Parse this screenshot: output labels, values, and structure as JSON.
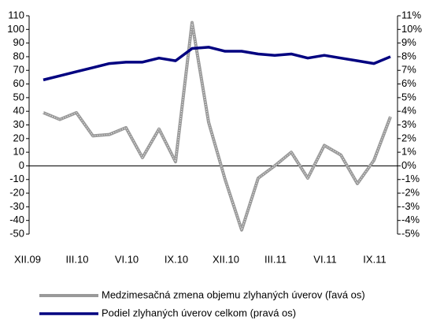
{
  "chart_data": {
    "type": "line",
    "categories": [
      "XII.09",
      null,
      null,
      "III.10",
      null,
      null,
      "VI.10",
      null,
      null,
      "IX.10",
      null,
      null,
      "XII.10",
      null,
      null,
      "III.11",
      null,
      null,
      "VI.11",
      null,
      null,
      "IX.11"
    ],
    "series": [
      {
        "name": "Medzimesačná zmena objemu zlyhaných úverov (ľavá os)",
        "color": "#999999",
        "values": [
          39,
          34,
          39,
          22,
          23,
          28,
          6,
          27,
          3,
          105,
          32,
          -10,
          -47,
          -9,
          0,
          10,
          -9,
          15,
          8,
          -13,
          4,
          36
        ]
      },
      {
        "name": "Podiel zlyhaných úverov celkom (pravá os)",
        "color": "#000080",
        "axis": "y2",
        "values": [
          6.3,
          6.6,
          6.9,
          7.2,
          7.5,
          7.6,
          7.6,
          7.9,
          7.7,
          8.6,
          8.7,
          8.4,
          8.4,
          8.2,
          8.1,
          8.2,
          7.9,
          8.1,
          7.9,
          7.7,
          7.5,
          8.0
        ]
      }
    ],
    "ylim": [
      -50,
      110
    ],
    "yticks": [
      -50,
      -40,
      -30,
      -20,
      -10,
      0,
      10,
      20,
      30,
      40,
      50,
      60,
      70,
      80,
      90,
      100,
      110
    ],
    "y2lim": [
      -5,
      11
    ],
    "y2ticks": [
      {
        "value": -5,
        "label": "-5%"
      },
      {
        "value": -4,
        "label": "-4%"
      },
      {
        "value": -3,
        "label": "-3%"
      },
      {
        "value": -2,
        "label": "-2%"
      },
      {
        "value": -1,
        "label": "-1%"
      },
      {
        "value": 0,
        "label": "0%"
      },
      {
        "value": 1,
        "label": "1%"
      },
      {
        "value": 2,
        "label": "2%"
      },
      {
        "value": 3,
        "label": "3%"
      },
      {
        "value": 4,
        "label": "4%"
      },
      {
        "value": 5,
        "label": "5%"
      },
      {
        "value": 6,
        "label": "6%"
      },
      {
        "value": 7,
        "label": "7%"
      },
      {
        "value": 8,
        "label": "8%"
      },
      {
        "value": 9,
        "label": "9%"
      },
      {
        "value": 10,
        "label": "10%"
      },
      {
        "value": 11,
        "label": "11%"
      }
    ],
    "legend": "bottom"
  }
}
